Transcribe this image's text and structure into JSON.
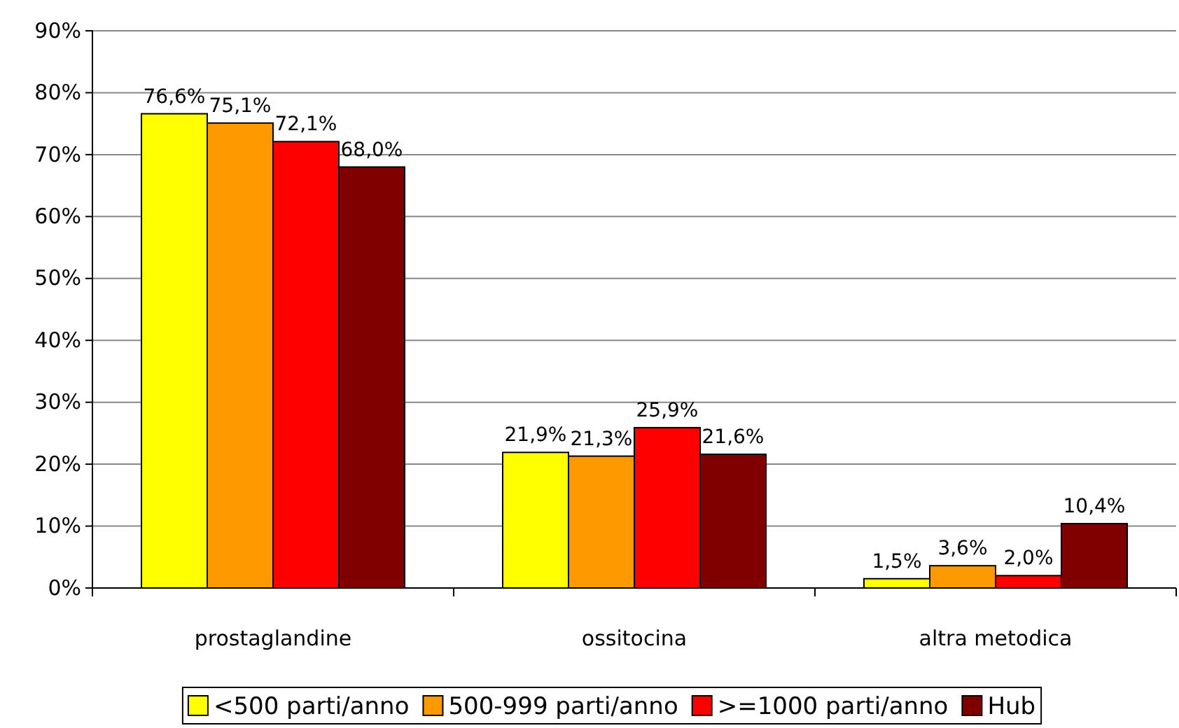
{
  "chart_data": {
    "type": "bar",
    "categories": [
      "prostaglandine",
      "ossitocina",
      "altra metodica"
    ],
    "series": [
      {
        "name": "<500 parti/anno",
        "color": "#ffff00",
        "values": [
          76.6,
          21.9,
          1.5
        ],
        "value_labels": [
          "76,6%",
          "21,9%",
          "1,5%"
        ]
      },
      {
        "name": "500-999 parti/anno",
        "color": "#ff9900",
        "values": [
          75.1,
          21.3,
          3.6
        ],
        "value_labels": [
          "75,1%",
          "21,3%",
          "3,6%"
        ]
      },
      {
        "name": ">=1000 parti/anno",
        "color": "#ff0000",
        "values": [
          72.1,
          25.9,
          2.0
        ],
        "value_labels": [
          "72,1%",
          "25,9%",
          "2,0%"
        ]
      },
      {
        "name": "Hub",
        "color": "#800000",
        "values": [
          68.0,
          21.6,
          10.4
        ],
        "value_labels": [
          "68,0%",
          "21,6%",
          "10,4%"
        ]
      }
    ],
    "ylim": [
      0,
      90
    ],
    "yticks": [
      {
        "value": 0,
        "label": "0%"
      },
      {
        "value": 10,
        "label": "10%"
      },
      {
        "value": 20,
        "label": "20%"
      },
      {
        "value": 30,
        "label": "30%"
      },
      {
        "value": 40,
        "label": "40%"
      },
      {
        "value": 50,
        "label": "50%"
      },
      {
        "value": 60,
        "label": "60%"
      },
      {
        "value": 70,
        "label": "70%"
      },
      {
        "value": 80,
        "label": "80%"
      },
      {
        "value": 90,
        "label": "90%"
      }
    ],
    "grid": "y",
    "legend": "bottom"
  }
}
